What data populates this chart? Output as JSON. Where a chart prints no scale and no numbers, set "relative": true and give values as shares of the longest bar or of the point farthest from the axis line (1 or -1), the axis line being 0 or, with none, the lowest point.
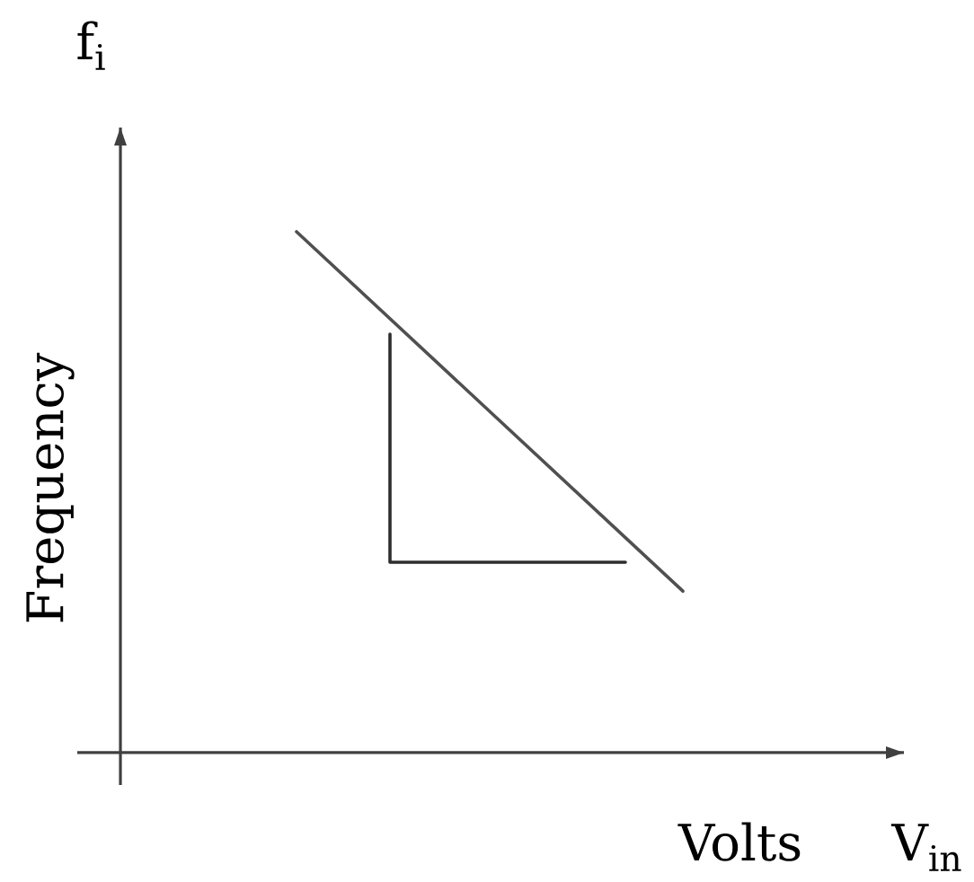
{
  "chart_data": {
    "type": "line",
    "categories": [
      null,
      null
    ],
    "xlabel": "Volts",
    "ylabel": "Frequency",
    "annotations": [
      "f$_{i}$",
      "V$_{in}$"
    ],
    "relative": true,
    "series": [
      {
        "color": "#505050",
        "values": [
          1,
          0.31
        ]
      }
    ]
  }
}
